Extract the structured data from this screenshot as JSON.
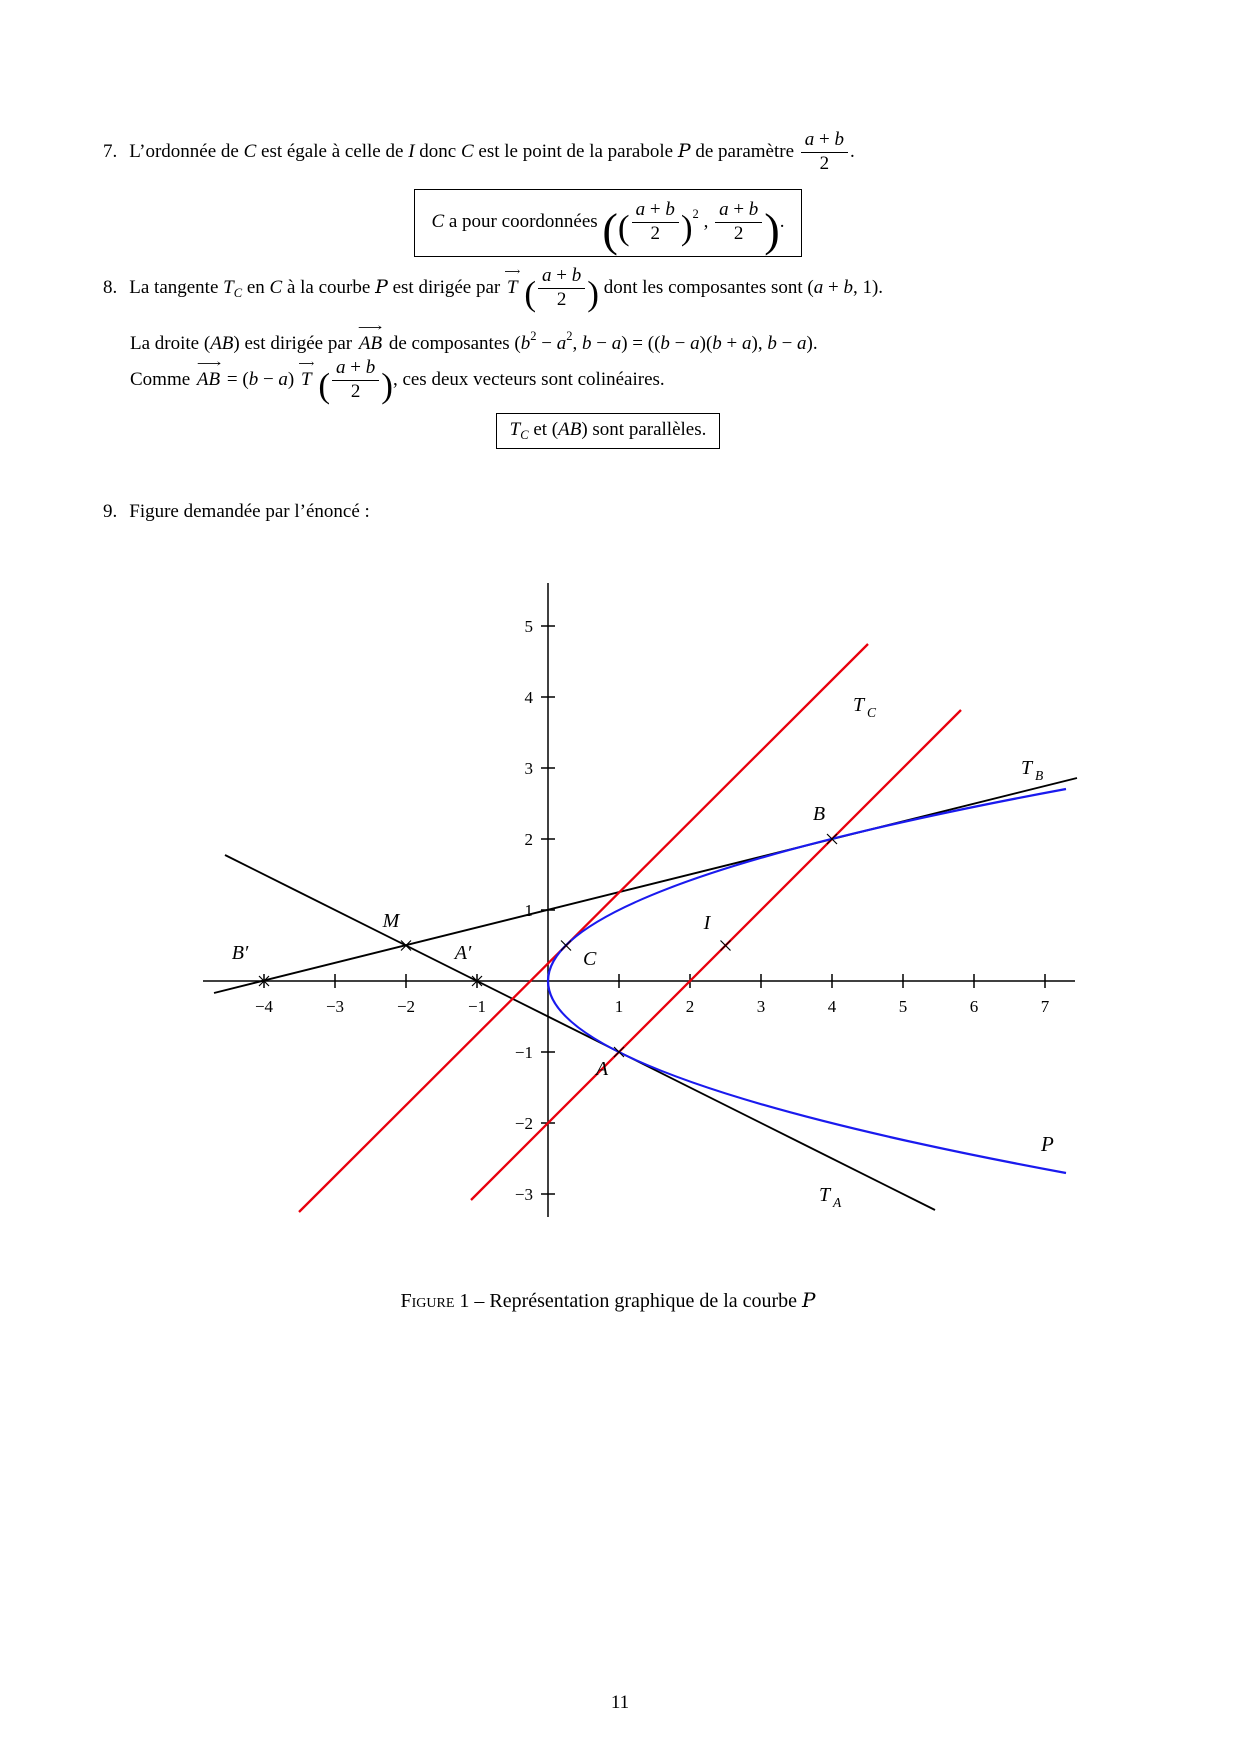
{
  "item7": {
    "number": "7.",
    "runs": [
      {
        "t": "L’ordonnée de "
      },
      {
        "m": "C"
      },
      {
        "t": " est égale à celle de "
      },
      {
        "m": "I"
      },
      {
        "t": " donc "
      },
      {
        "m": "C"
      },
      {
        "t": " est le point de la parabole "
      },
      {
        "cal": "P"
      },
      {
        "t": " de paramètre "
      },
      {
        "frac": {
          "n": "a + b",
          "d": "2"
        }
      },
      {
        "t": "."
      }
    ]
  },
  "coord_box": {
    "runs": [
      {
        "m": "C"
      },
      {
        "t": " a pour coordonnées "
      },
      {
        "big": "(",
        "s": "xl"
      },
      {
        "big": "(",
        "s": "lg"
      },
      {
        "frac": {
          "n": "a + b",
          "d": "2"
        }
      },
      {
        "big": ")",
        "s": "lg"
      },
      {
        "sup": "2"
      },
      {
        "t": " , "
      },
      {
        "frac": {
          "n": "a + b",
          "d": "2"
        }
      },
      {
        "big": ")",
        "s": "xl"
      },
      {
        "t": "."
      }
    ]
  },
  "item8": {
    "number": "8.",
    "line1": [
      {
        "t": "La tangente "
      },
      {
        "m": "T"
      },
      {
        "sub": "C"
      },
      {
        "t": " en "
      },
      {
        "m": "C"
      },
      {
        "t": " à la courbe "
      },
      {
        "cal": "P"
      },
      {
        "t": " est dirigée par "
      },
      {
        "vec": "T"
      },
      {
        "t": " "
      },
      {
        "big": "(",
        "s": "lg"
      },
      {
        "frac": {
          "n": "a + b",
          "d": "2"
        }
      },
      {
        "big": ")",
        "s": "lg"
      },
      {
        "t": " dont les composantes sont "
      },
      {
        "m": "(a + b, 1)"
      },
      {
        "t": "."
      }
    ],
    "line2": [
      {
        "t": "La droite "
      },
      {
        "m": "(AB)"
      },
      {
        "t": " est dirigée par "
      },
      {
        "vec": "AB"
      },
      {
        "t": " de composantes "
      },
      {
        "m": "(b"
      },
      {
        "sup": "2"
      },
      {
        "m": " − a"
      },
      {
        "sup": "2"
      },
      {
        "m": ", b − a) = ((b − a)(b + a), b − a)"
      },
      {
        "t": "."
      }
    ],
    "line3": [
      {
        "t": "Comme "
      },
      {
        "vec": "AB"
      },
      {
        "m": " = (b − a) "
      },
      {
        "vec": "T"
      },
      {
        "t": " "
      },
      {
        "big": "(",
        "s": "lg"
      },
      {
        "frac": {
          "n": "a + b",
          "d": "2"
        }
      },
      {
        "big": ")",
        "s": "lg"
      },
      {
        "t": ", ces deux vecteurs sont colinéaires."
      }
    ]
  },
  "parallel_box": {
    "runs": [
      {
        "m": "T"
      },
      {
        "sub": "C"
      },
      {
        "t": " et "
      },
      {
        "m": "(AB)"
      },
      {
        "t": " sont parallèles."
      }
    ]
  },
  "item9": {
    "number": "9.",
    "runs": [
      {
        "t": "Figure demandée par l’énoncé :"
      }
    ]
  },
  "figure": {
    "x_tick_labels": [
      "−4",
      "−3",
      "−2",
      "−1",
      "1",
      "2",
      "3",
      "4",
      "5",
      "6",
      "7"
    ],
    "y_tick_labels": [
      "5",
      "4",
      "3",
      "2",
      "1",
      "−1",
      "−2",
      "−3"
    ],
    "labels": {
      "Bprime": "B′",
      "Aprime": "A′",
      "M": "M",
      "C": "C",
      "I": "I",
      "A": "A",
      "B": "B",
      "TC": {
        "base": "T",
        "sub": "C"
      },
      "TB": {
        "base": "T",
        "sub": "B"
      },
      "TA": {
        "base": "T",
        "sub": "A"
      },
      "P": "P"
    },
    "colors": {
      "parabola": "#1a1aee",
      "tangent_red": "#e8000d",
      "line_black": "#000000"
    },
    "chart_data": {
      "type": "line",
      "x_ticks": [
        -4,
        -3,
        -2,
        -1,
        1,
        2,
        3,
        4,
        5,
        6,
        7
      ],
      "y_ticks": [
        -3,
        -2,
        -1,
        1,
        2,
        3,
        4,
        5
      ],
      "xlim": [
        -4.9,
        7.5
      ],
      "ylim": [
        -3.3,
        5.6
      ],
      "grid": false,
      "curves": [
        {
          "name": "P",
          "description": "parabole x = y²",
          "color": "#1a1aee",
          "y_range": [
            -2.7,
            2.7
          ]
        },
        {
          "name": "T_C",
          "description": "tangente en C : y = x + 0.25",
          "color": "#e8000d",
          "x_range": [
            -3.5,
            4.5
          ]
        },
        {
          "name": "(AB)",
          "description": "droite (AB) : y = x − 2",
          "color": "#e8000d",
          "x_range": [
            -1.08,
            5.82
          ]
        },
        {
          "name": "T_B",
          "description": "tangente en B : y = (x + 4)/4",
          "color": "#000000",
          "x_range": [
            -4.7,
            7.45
          ]
        },
        {
          "name": "T_A",
          "description": "tangente en A : y = −(x + 1)/2",
          "color": "#000000",
          "x_range": [
            -4.55,
            5.45
          ]
        }
      ],
      "points": {
        "A": [
          1,
          -1
        ],
        "B": [
          4,
          2
        ],
        "C": [
          0.25,
          0.5
        ],
        "I": [
          2.5,
          0.5
        ],
        "M": [
          -2,
          0.5
        ],
        "Bprime": [
          -4,
          0
        ],
        "Aprime": [
          -1,
          0
        ]
      }
    }
  },
  "caption": {
    "runs": [
      {
        "sc": "Figure"
      },
      {
        "t": " 1 – Représentation graphique de la courbe "
      },
      {
        "cal": "P"
      }
    ]
  },
  "page_number": "11"
}
